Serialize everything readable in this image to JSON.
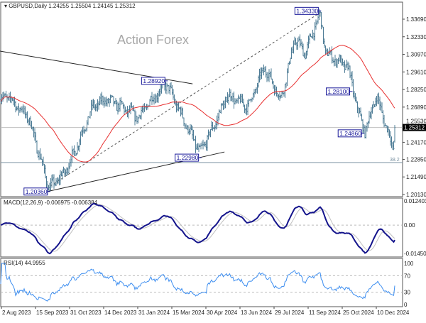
{
  "chart_data": {
    "type": "ohlc",
    "header": {
      "symbol_timeframe": "GBPUSD,Daily",
      "open": "1.24255",
      "high": "1.25504",
      "low": "1.24145",
      "close": "1.25312"
    },
    "watermark": "Action Forex",
    "y_axis": {
      "ticks": [
        "1.33690",
        "1.32330",
        "1.30970",
        "1.29610",
        "1.28250",
        "1.26890",
        "1.25530",
        "1.24170",
        "1.22850",
        "1.21490",
        "1.20130"
      ],
      "current_price": "1.25312"
    },
    "x_axis": {
      "ticks": [
        "2 Aug 2023",
        "15 Sep 2023",
        "31 Oct 2023",
        "14 Dec 2023",
        "31 Jan 2024",
        "15 Mar 2024",
        "30 Apr 2024",
        "13 Jun 2024",
        "29 Jul 2024",
        "11 Sep 2024",
        "25 Oct 2024",
        "10 Dec 2024"
      ]
    },
    "price_path": [
      [
        "2023-07-31",
        1.2748
      ],
      [
        "2023-08-09",
        1.2776
      ],
      [
        "2023-09-06",
        1.261
      ],
      [
        "2023-09-25",
        1.2227
      ],
      [
        "2023-10-03",
        1.2062
      ],
      [
        "2023-10-23",
        1.217
      ],
      [
        "2023-11-06",
        1.2337
      ],
      [
        "2023-11-30",
        1.2694
      ],
      [
        "2023-12-18",
        1.2748
      ],
      [
        "2024-01-07",
        1.2694
      ],
      [
        "2024-02-01",
        1.261
      ],
      [
        "2024-02-14",
        1.272
      ],
      [
        "2024-03-08",
        1.287
      ],
      [
        "2024-03-27",
        1.264
      ],
      [
        "2024-04-10",
        1.2474
      ],
      [
        "2024-04-22",
        1.2337
      ],
      [
        "2024-05-09",
        1.253
      ],
      [
        "2024-05-28",
        1.2776
      ],
      [
        "2024-06-24",
        1.2694
      ],
      [
        "2024-07-16",
        1.2996
      ],
      [
        "2024-08-07",
        1.2748
      ],
      [
        "2024-08-25",
        1.3215
      ],
      [
        "2024-09-07",
        1.3105
      ],
      [
        "2024-09-26",
        1.3407
      ],
      [
        "2024-10-04",
        1.3105
      ],
      [
        "2024-11-02",
        1.2996
      ],
      [
        "2024-11-16",
        1.264
      ],
      [
        "2024-11-25",
        1.2501
      ],
      [
        "2024-12-10",
        1.2776
      ],
      [
        "2024-12-24",
        1.253
      ],
      [
        "2025-01-02",
        1.2364
      ],
      [
        "2025-01-05",
        1.2531
      ]
    ],
    "annotations": [
      {
        "text": "1.20360",
        "date": "2023-10-03",
        "price": 1.2036
      },
      {
        "text": "1.28920",
        "date": "2024-03-08",
        "price": 1.2892
      },
      {
        "text": "1.22980",
        "date": "2024-04-22",
        "price": 1.2298
      },
      {
        "text": "1.34330",
        "date": "2024-09-26",
        "price": 1.3433
      },
      {
        "text": "1.28100",
        "date": "2024-11-06",
        "price": 1.281
      },
      {
        "text": "1.24860",
        "date": "2024-11-22",
        "price": 1.2486
      }
    ],
    "trendlines": [
      {
        "style": "solid",
        "from": [
          "2023-07-31",
          1.3122
        ],
        "to": [
          "2024-04-12",
          1.2869
        ]
      },
      {
        "style": "solid",
        "from": [
          "2023-09-30",
          1.2035
        ],
        "to": [
          "2024-05-24",
          1.2342
        ]
      },
      {
        "style": "dotted",
        "from": [
          "2023-10-05",
          1.2079
        ],
        "to": [
          "2024-09-26",
          1.3418
        ]
      }
    ],
    "fibonacci": {
      "label": "38.2",
      "price": 1.226
    },
    "moving_average": {
      "color": "#e83030"
    },
    "bar_color": "#4e7c96",
    "macd": {
      "label": "MACD(12,26,9) -0.006975 -0.006384",
      "ticks": [
        "0.012403",
        "0.00",
        "-0.014502"
      ],
      "range": [
        -0.014502,
        0.012403
      ],
      "main_color": "#14148c",
      "signal_color": "#c0c0c0"
    },
    "rsi": {
      "label": "RSI(14) 44.9955",
      "ticks": [
        "100",
        "70",
        "30",
        "0"
      ],
      "levels": [
        70,
        30
      ],
      "color": "#3d8ef0"
    }
  }
}
